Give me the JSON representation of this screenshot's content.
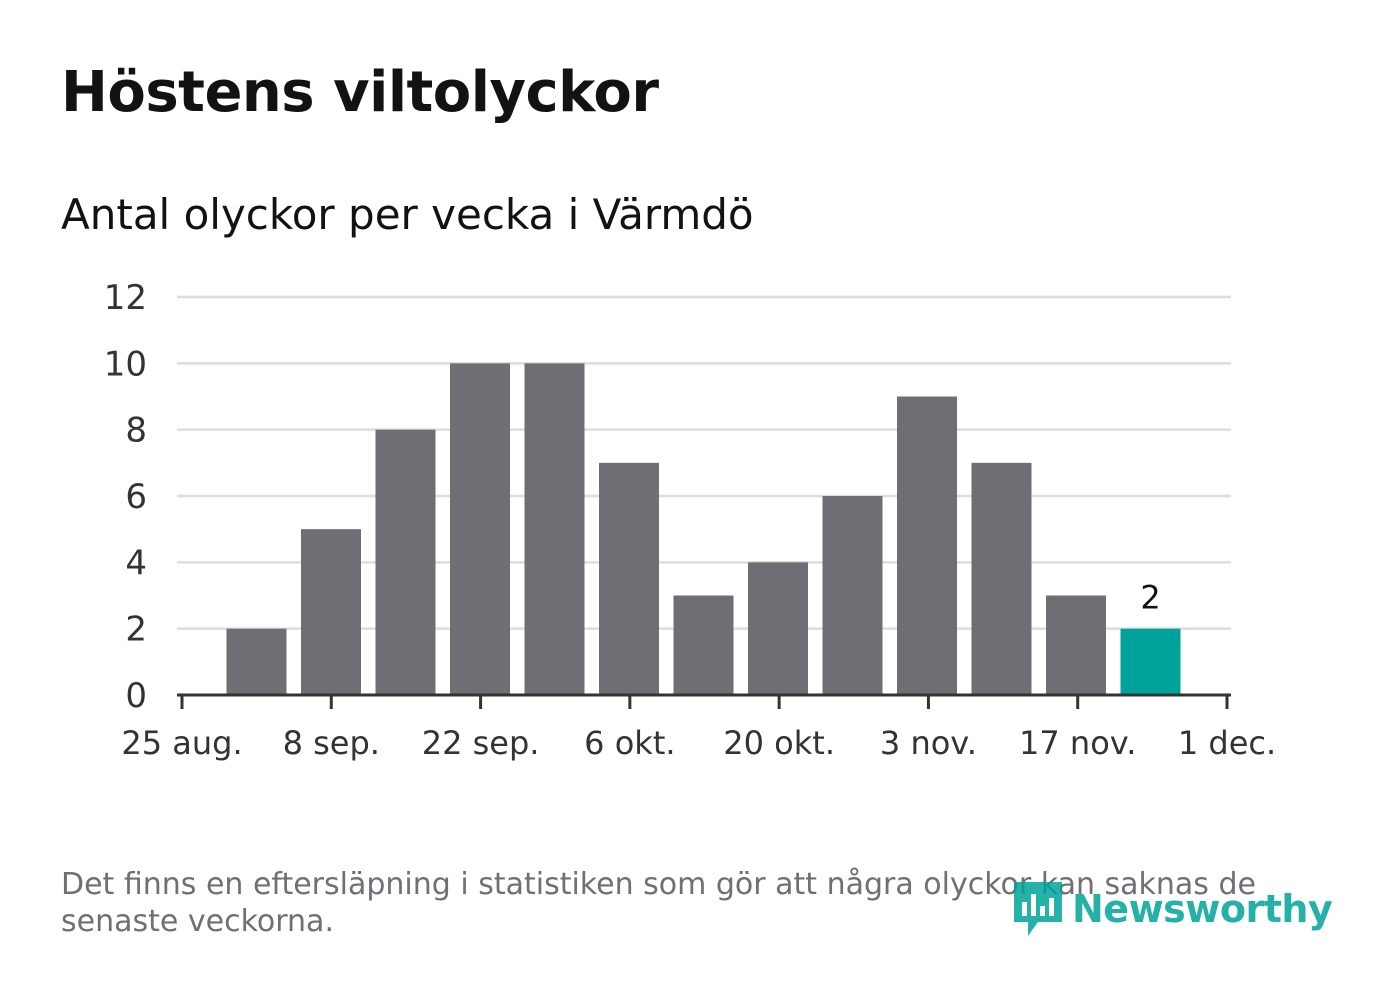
{
  "title": "Höstens viltolyckor",
  "subtitle": "Antal olyckor per vecka i Värmdö",
  "footnote": "Det finns en eftersläpning i statistiken som gör att några olyckor kan saknas de senaste veckorna.",
  "brand": {
    "name": "Newsworthy",
    "color": "#00a39a",
    "icon": "newsworthy-logo-icon"
  },
  "colors": {
    "bar": "#6f6e75",
    "highlight": "#00a39a",
    "grid": "#dddddd",
    "axis": "#333333"
  },
  "chart_data": {
    "type": "bar",
    "x_tick_labels": [
      "25 aug.",
      "8 sep.",
      "22 sep.",
      "6 okt.",
      "20 okt.",
      "3 nov.",
      "17 nov.",
      "1 dec."
    ],
    "values": [
      2,
      5,
      8,
      10,
      10,
      7,
      3,
      4,
      6,
      9,
      7,
      3,
      2
    ],
    "highlight_index": 12,
    "data_labels": [
      {
        "index": 12,
        "text": "2"
      }
    ],
    "y_ticks": [
      0,
      2,
      4,
      6,
      8,
      10,
      12
    ],
    "ylim": [
      0,
      12
    ],
    "grid": true,
    "legend": "none"
  }
}
